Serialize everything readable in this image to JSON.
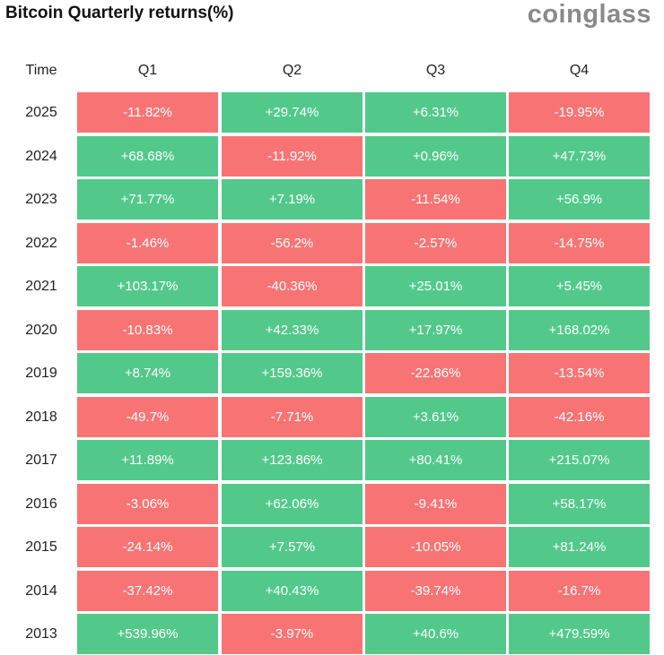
{
  "header": {
    "title": "Bitcoin Quarterly returns(%)",
    "logo": "coinglass"
  },
  "table": {
    "columns": [
      "Time",
      "Q1",
      "Q2",
      "Q3",
      "Q4"
    ],
    "rows": [
      [
        "2025",
        "-11.82%",
        "+29.74%",
        "+6.31%",
        "-19.95%"
      ],
      [
        "2024",
        "+68.68%",
        "-11.92%",
        "+0.96%",
        "+47.73%"
      ],
      [
        "2023",
        "+71.77%",
        "+7.19%",
        "-11.54%",
        "+56.9%"
      ],
      [
        "2022",
        "-1.46%",
        "-56.2%",
        "-2.57%",
        "-14.75%"
      ],
      [
        "2021",
        "+103.17%",
        "-40.36%",
        "+25.01%",
        "+5.45%"
      ],
      [
        "2020",
        "-10.83%",
        "+42.33%",
        "+17.97%",
        "+168.02%"
      ],
      [
        "2019",
        "+8.74%",
        "+159.36%",
        "-22.86%",
        "-13.54%"
      ],
      [
        "2018",
        "-49.7%",
        "-7.71%",
        "+3.61%",
        "-42.16%"
      ],
      [
        "2017",
        "+11.89%",
        "+123.86%",
        "+80.41%",
        "+215.07%"
      ],
      [
        "2016",
        "-3.06%",
        "+62.06%",
        "-9.41%",
        "+58.17%"
      ],
      [
        "2015",
        "-24.14%",
        "+7.57%",
        "-10.05%",
        "+81.24%"
      ],
      [
        "2014",
        "-37.42%",
        "+40.43%",
        "-39.74%",
        "-16.7%"
      ],
      [
        "2013",
        "+539.96%",
        "-3.97%",
        "+40.6%",
        "+479.59%"
      ]
    ],
    "positive_color": "#52c98a",
    "negative_color": "#f87474"
  }
}
